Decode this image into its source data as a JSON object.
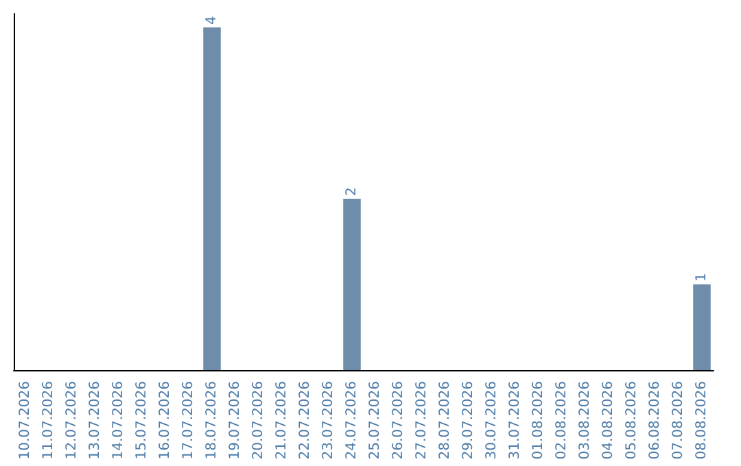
{
  "chart_data": {
    "type": "bar",
    "categories": [
      "10.07.2026",
      "11.07.2026",
      "12.07.2026",
      "13.07.2026",
      "14.07.2026",
      "15.07.2026",
      "16.07.2026",
      "17.07.2026",
      "18.07.2026",
      "19.07.2026",
      "20.07.2026",
      "21.07.2026",
      "22.07.2026",
      "23.07.2026",
      "24.07.2026",
      "25.07.2026",
      "26.07.2026",
      "27.07.2026",
      "28.07.2026",
      "29.07.2026",
      "30.07.2026",
      "31.07.2026",
      "01.08.2026",
      "02.08.2026",
      "03.08.2026",
      "04.08.2026",
      "05.08.2026",
      "06.08.2026",
      "07.08.2026",
      "08.08.2026"
    ],
    "values": [
      0,
      0,
      0,
      0,
      0,
      0,
      0,
      0,
      4,
      0,
      0,
      0,
      0,
      0,
      2,
      0,
      0,
      0,
      0,
      0,
      0,
      0,
      0,
      0,
      0,
      0,
      0,
      0,
      0,
      1
    ],
    "value_labels": [
      null,
      null,
      null,
      null,
      null,
      null,
      null,
      null,
      "4",
      null,
      null,
      null,
      null,
      null,
      "2",
      null,
      null,
      null,
      null,
      null,
      null,
      null,
      null,
      null,
      null,
      null,
      null,
      null,
      null,
      "1"
    ],
    "color": "#6d8dab"
  }
}
